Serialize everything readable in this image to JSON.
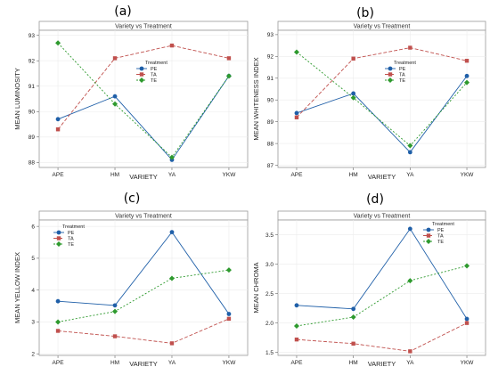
{
  "chart_data": [
    {
      "panel": "(a)",
      "type": "line",
      "title": "Variety vs Treatment",
      "xlabel": "VARIETY",
      "ylabel": "MEAN LUMINOSITY",
      "categories": [
        "APE",
        "HM",
        "YA",
        "YKW"
      ],
      "ylim": [
        87.8,
        93.2
      ],
      "yticks": [
        88,
        89,
        90,
        91,
        92,
        93
      ],
      "legend_title": "Treatment",
      "legend_position": "center-right",
      "series": [
        {
          "name": "PE",
          "color": "#1f5fa8",
          "dash": "",
          "marker": "circle",
          "values": [
            89.7,
            90.6,
            88.1,
            91.4
          ]
        },
        {
          "name": "TA",
          "color": "#c0504d",
          "dash": "4,2",
          "marker": "square",
          "values": [
            89.3,
            92.1,
            92.6,
            92.1
          ]
        },
        {
          "name": "TE",
          "color": "#2e9a2e",
          "dash": "2,2",
          "marker": "diamond",
          "values": [
            92.7,
            90.3,
            88.2,
            91.4
          ]
        }
      ]
    },
    {
      "panel": "(b)",
      "type": "line",
      "title": "Variety vs Treatment",
      "xlabel": "VARIETY",
      "ylabel": "MEAN WHITENESS INDEX",
      "categories": [
        "APE",
        "HM",
        "YA",
        "YKW"
      ],
      "ylim": [
        86.9,
        93.2
      ],
      "yticks": [
        87,
        88,
        89,
        90,
        91,
        92,
        93
      ],
      "legend_title": "Treatment",
      "legend_position": "top-right",
      "series": [
        {
          "name": "PE",
          "color": "#1f5fa8",
          "dash": "",
          "marker": "circle",
          "values": [
            89.4,
            90.3,
            87.6,
            91.1
          ]
        },
        {
          "name": "TA",
          "color": "#c0504d",
          "dash": "4,2",
          "marker": "square",
          "values": [
            89.2,
            91.9,
            92.4,
            91.8
          ]
        },
        {
          "name": "TE",
          "color": "#2e9a2e",
          "dash": "2,2",
          "marker": "diamond",
          "values": [
            92.2,
            90.1,
            87.9,
            90.8
          ]
        }
      ]
    },
    {
      "panel": "(c)",
      "type": "line",
      "title": "Variety vs Treatment",
      "xlabel": "VARIETY",
      "ylabel": "MEAN YELLOW INDEX",
      "categories": [
        "APE",
        "HM",
        "YA",
        "YKW"
      ],
      "ylim": [
        1.95,
        6.2
      ],
      "yticks": [
        2,
        3,
        4,
        5,
        6
      ],
      "legend_title": "Treatment",
      "legend_position": "top-left",
      "series": [
        {
          "name": "PE",
          "color": "#1f5fa8",
          "dash": "",
          "marker": "circle",
          "values": [
            3.65,
            3.52,
            5.82,
            3.25
          ]
        },
        {
          "name": "TA",
          "color": "#c0504d",
          "dash": "4,2",
          "marker": "square",
          "values": [
            2.72,
            2.55,
            2.33,
            3.1
          ]
        },
        {
          "name": "TE",
          "color": "#2e9a2e",
          "dash": "2,2",
          "marker": "diamond",
          "values": [
            3.0,
            3.33,
            4.37,
            4.63
          ]
        }
      ]
    },
    {
      "panel": "(d)",
      "type": "line",
      "title": "Variety vs Treatment",
      "xlabel": "VARIETY",
      "ylabel": "MEAN CHROMA",
      "categories": [
        "APE",
        "HM",
        "YA",
        "YKW"
      ],
      "ylim": [
        1.45,
        3.75
      ],
      "yticks": [
        1.5,
        2.0,
        2.5,
        3.0,
        3.5
      ],
      "legend_title": "Treatment",
      "legend_position": "top-right",
      "series": [
        {
          "name": "PE",
          "color": "#1f5fa8",
          "dash": "",
          "marker": "circle",
          "values": [
            2.3,
            2.24,
            3.6,
            2.07
          ]
        },
        {
          "name": "TA",
          "color": "#c0504d",
          "dash": "4,2",
          "marker": "square",
          "values": [
            1.72,
            1.65,
            1.52,
            2.0
          ]
        },
        {
          "name": "TE",
          "color": "#2e9a2e",
          "dash": "2,2",
          "marker": "diamond",
          "values": [
            1.95,
            2.1,
            2.72,
            2.97
          ]
        }
      ]
    }
  ]
}
